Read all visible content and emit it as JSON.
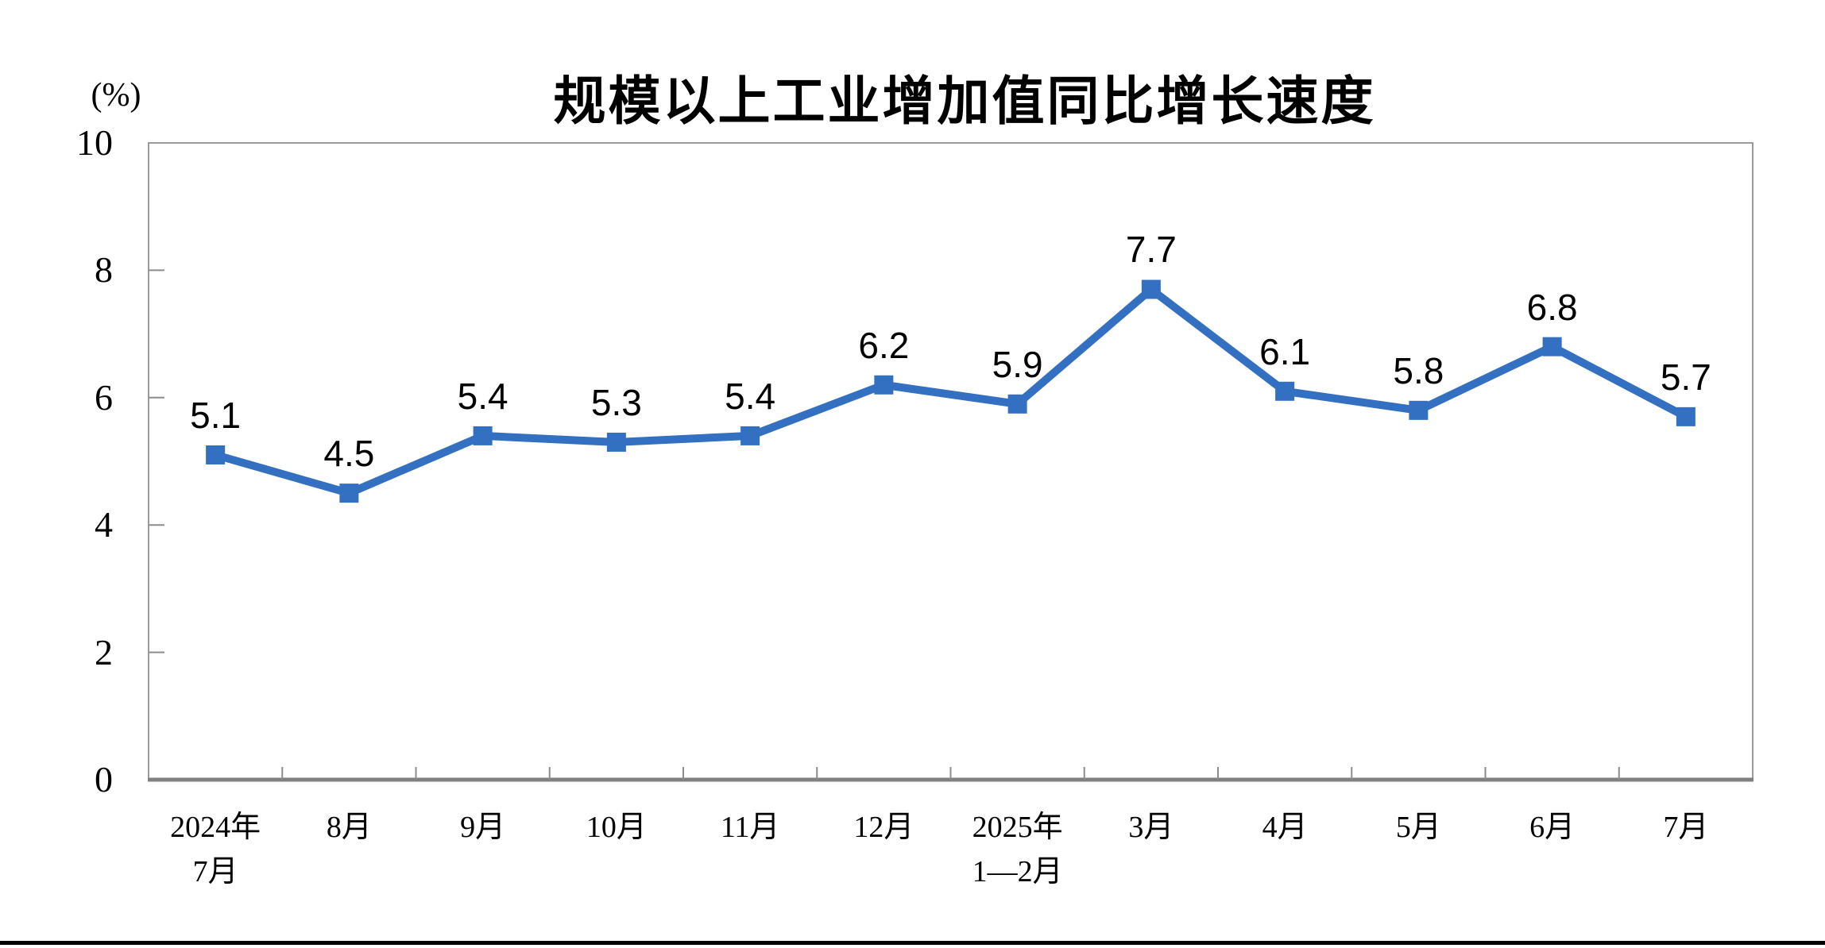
{
  "page": {
    "background": "#ffffff"
  },
  "chart_data": {
    "type": "line",
    "title": "规模以上工业增加值同比增长速度",
    "unit_label": "(%)",
    "categories": [
      [
        "2024年",
        "7月"
      ],
      [
        "8月"
      ],
      [
        "9月"
      ],
      [
        "10月"
      ],
      [
        "11月"
      ],
      [
        "12月"
      ],
      [
        "2025年",
        "1—2月"
      ],
      [
        "3月"
      ],
      [
        "4月"
      ],
      [
        "5月"
      ],
      [
        "6月"
      ],
      [
        "7月"
      ]
    ],
    "values": [
      5.1,
      4.5,
      5.4,
      5.3,
      5.4,
      6.2,
      5.9,
      7.7,
      6.1,
      5.8,
      6.8,
      5.7
    ],
    "data_labels": [
      "5.1",
      "4.5",
      "5.4",
      "5.3",
      "5.4",
      "6.2",
      "5.9",
      "7.7",
      "6.1",
      "5.8",
      "6.8",
      "5.7"
    ],
    "xlabel": "",
    "ylabel": "(%)",
    "ylim": [
      0,
      10
    ],
    "yticks": [
      0,
      2,
      4,
      6,
      8,
      10
    ],
    "grid": "off",
    "legend": "none",
    "marker": "square",
    "line_color": "#3470C2",
    "axis_border_color": "#9B9B9B",
    "axis_bottom_color": "#808080",
    "tick_color": "#8C8C8C",
    "text_color": "#000000"
  }
}
